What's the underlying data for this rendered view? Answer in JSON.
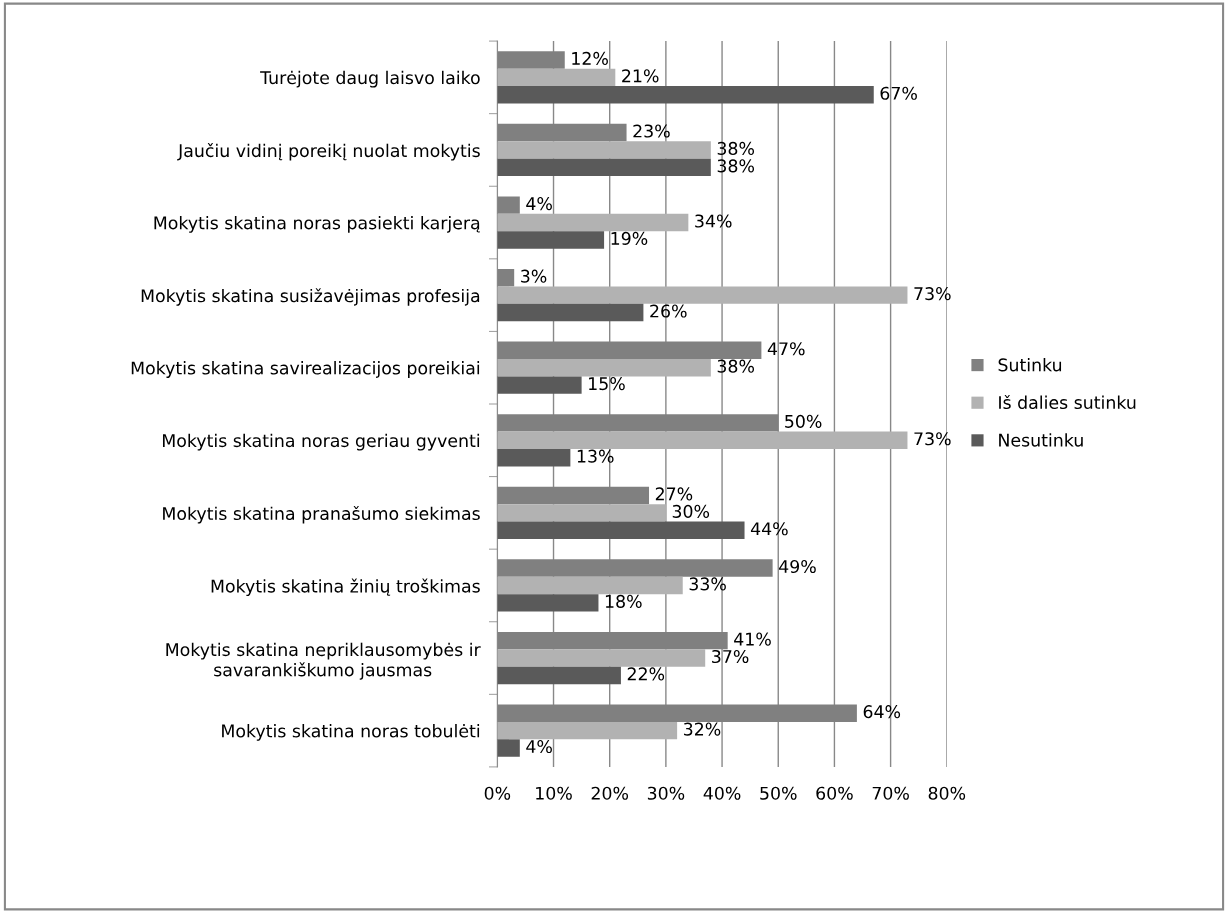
{
  "chart_data": {
    "type": "bar",
    "orientation": "horizontal",
    "categories": [
      "Turėjote daug laisvo laiko",
      "Jaučiu vidinį poreikį nuolat mokytis",
      "Mokytis skatina noras pasiekti karjerą",
      "Mokytis skatina susižavėjimas profesija",
      "Mokytis skatina savirealizacijos poreikiai",
      "Mokytis skatina noras geriau gyventi",
      "Mokytis skatina pranašumo siekimas",
      "Mokytis skatina žinių troškimas",
      "Mokytis skatina nepriklausomybės ir\nsavarankiškumo jausmas",
      "Mokytis skatina noras tobulėti"
    ],
    "series": [
      {
        "name": "Sutinku",
        "color": "#808080",
        "values": [
          12,
          23,
          4,
          3,
          47,
          50,
          27,
          49,
          41,
          64
        ],
        "value_labels": [
          "12%",
          "23%",
          "4%",
          "3%",
          "47%",
          "50%",
          "27%",
          "49%",
          "41%",
          "64%"
        ]
      },
      {
        "name": "Iš dalies sutinku",
        "color": "#b2b2b2",
        "values": [
          21,
          38,
          34,
          73,
          38,
          73,
          30,
          33,
          37,
          32
        ],
        "value_labels": [
          "21%",
          "38%",
          "34%",
          "73%",
          "38%",
          "73%",
          "30%",
          "33%",
          "37%",
          "32%"
        ]
      },
      {
        "name": "Nesutinku",
        "color": "#5a5a5a",
        "values": [
          67,
          38,
          19,
          26,
          15,
          13,
          44,
          18,
          22,
          4
        ],
        "value_labels": [
          "67%",
          "38%",
          "19%",
          "26%",
          "15%",
          "13%",
          "44%",
          "18%",
          "22%",
          "4%"
        ]
      }
    ],
    "xlim": [
      0,
      80
    ],
    "xticks": [
      {
        "value": 0,
        "label": "0%"
      },
      {
        "value": 10,
        "label": "10%"
      },
      {
        "value": 20,
        "label": "20%"
      },
      {
        "value": 30,
        "label": "30%"
      },
      {
        "value": 40,
        "label": "40%"
      },
      {
        "value": 50,
        "label": "50%"
      },
      {
        "value": 60,
        "label": "60%"
      },
      {
        "value": 70,
        "label": "70%"
      },
      {
        "value": 80,
        "label": "80%"
      }
    ],
    "grid": "x",
    "legend": "right"
  }
}
